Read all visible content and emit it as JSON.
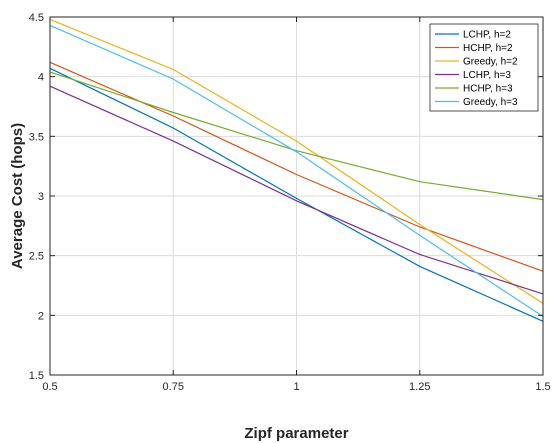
{
  "chart_data": {
    "type": "line",
    "xlabel": "Zipf parameter",
    "ylabel": "Average Cost (hops)",
    "x": [
      0.5,
      0.75,
      1,
      1.25,
      1.5
    ],
    "x_tick_labels": [
      "0.5",
      "0.75",
      "1",
      "1.25",
      "1.5"
    ],
    "y_ticks": [
      1.5,
      2,
      2.5,
      3,
      3.5,
      4,
      4.5
    ],
    "y_tick_labels": [
      "1.5",
      "2",
      "2.5",
      "3",
      "3.5",
      "4",
      "4.5"
    ],
    "xlim": [
      0.5,
      1.5
    ],
    "ylim": [
      1.5,
      4.5
    ],
    "grid": true,
    "legend_position": "top-right",
    "series": [
      {
        "name": "LCHP, h=2",
        "color": "#0072BD",
        "values": [
          4.07,
          3.57,
          2.98,
          2.41,
          1.95
        ]
      },
      {
        "name": "HCHP, h=2",
        "color": "#D95319",
        "values": [
          4.12,
          3.67,
          3.18,
          2.74,
          2.37
        ]
      },
      {
        "name": "Greedy, h=2",
        "color": "#EDB120",
        "values": [
          4.48,
          4.06,
          3.46,
          2.76,
          2.1
        ]
      },
      {
        "name": "LCHP, h=3",
        "color": "#7E2F8E",
        "values": [
          3.92,
          3.46,
          2.96,
          2.51,
          2.18
        ]
      },
      {
        "name": "HCHP, h=3",
        "color": "#77AC30",
        "values": [
          4.04,
          3.7,
          3.38,
          3.12,
          2.97
        ]
      },
      {
        "name": "Greedy, h=3",
        "color": "#4DBEEE",
        "values": [
          4.43,
          3.98,
          3.37,
          2.67,
          1.99
        ]
      }
    ]
  }
}
